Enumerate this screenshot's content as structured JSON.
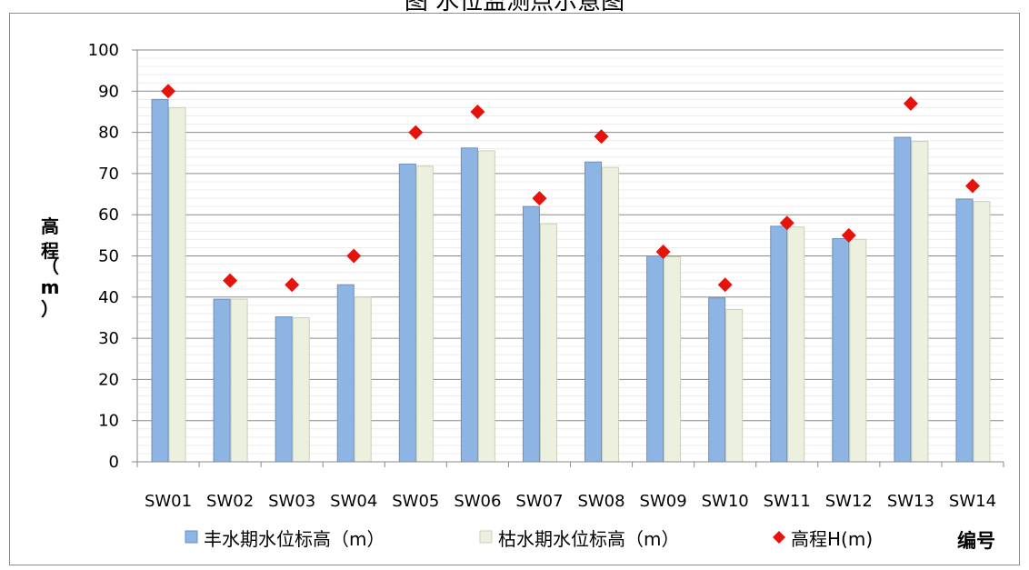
{
  "page_title": "图 水位监测点示意图",
  "chart_data": {
    "type": "bar",
    "title": "",
    "xlabel": "编号",
    "ylabel": "高程（m）",
    "ylim": [
      0,
      100
    ],
    "y_ticks": [
      0,
      10,
      20,
      30,
      40,
      50,
      60,
      70,
      80,
      90,
      100
    ],
    "grid": "horizontal",
    "legend_position": "bottom",
    "categories": [
      "SW01",
      "SW02",
      "SW03",
      "SW04",
      "SW05",
      "SW06",
      "SW07",
      "SW08",
      "SW09",
      "SW10",
      "SW11",
      "SW12",
      "SW13",
      "SW14"
    ],
    "series": [
      {
        "name": "丰水期水位标高（m）",
        "kind": "bar",
        "color": "#8EB4E3",
        "values": [
          88,
          39.5,
          35.2,
          43,
          72.3,
          76.2,
          62,
          72.8,
          50,
          39.8,
          57.2,
          54.2,
          78.8,
          63.8
        ]
      },
      {
        "name": "枯水期水位标高（m）",
        "kind": "bar",
        "color": "#EBF1DE",
        "values": [
          86,
          39.5,
          35,
          40,
          71.8,
          75.5,
          57.8,
          71.5,
          49.8,
          37,
          57,
          54,
          77.8,
          63.2
        ]
      },
      {
        "name": "高程H(m)",
        "kind": "marker",
        "marker": "diamond",
        "color": "#E8120C",
        "values": [
          90,
          44,
          43,
          50,
          80,
          85,
          64,
          79,
          51,
          43,
          58,
          55,
          87,
          67
        ]
      }
    ]
  }
}
